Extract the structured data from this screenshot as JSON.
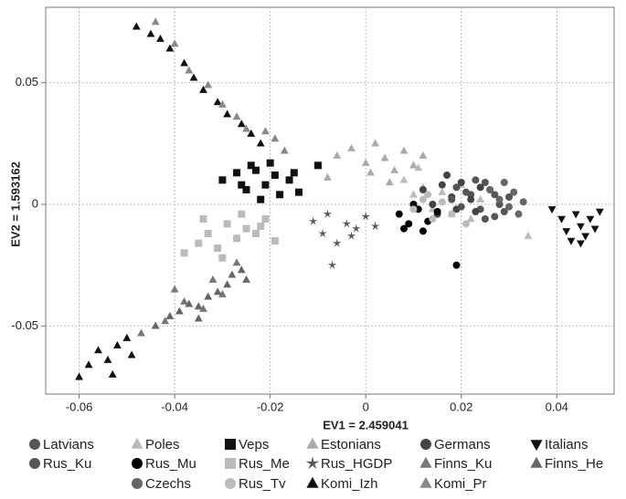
{
  "chart_data": {
    "type": "scatter",
    "x_label": "EV1 = 2.459041",
    "y_label": "EV2 = 1.593162",
    "xlim": [
      -0.067,
      0.052
    ],
    "ylim": [
      -0.078,
      0.081
    ],
    "xticks": [
      -0.06,
      -0.04,
      -0.02,
      0,
      0.02,
      0.04
    ],
    "yticks": [
      -0.05,
      0,
      0.05
    ],
    "grid": true,
    "legend": "bottom",
    "series": [
      {
        "name": "Latvians",
        "color": "#555555",
        "marker": "circle",
        "x": [
          0.022,
          0.024,
          0.026,
          0.028,
          0.03,
          0.025,
          0.027,
          0.029
        ],
        "y": [
          0.004,
          -0.002,
          0.006,
          0.0,
          0.003,
          0.009,
          -0.005,
          -0.003
        ]
      },
      {
        "name": "Poles",
        "color": "#bbbbbb",
        "marker": "triangle",
        "x": [
          0.008,
          0.01,
          0.012,
          0.014,
          0.016,
          0.018,
          0.02,
          0.022,
          0.024,
          0.011,
          0.034
        ],
        "y": [
          0.01,
          0.004,
          0.007,
          -0.002,
          0.005,
          -0.004,
          0.008,
          -0.006,
          0.002,
          0.015,
          -0.013
        ]
      },
      {
        "name": "Veps",
        "color": "#111111",
        "marker": "square",
        "x": [
          -0.03,
          -0.027,
          -0.025,
          -0.023,
          -0.021,
          -0.019,
          -0.018,
          -0.016,
          -0.022,
          -0.024,
          -0.02,
          -0.014,
          -0.015,
          -0.01,
          -0.026
        ],
        "y": [
          0.01,
          0.013,
          0.006,
          0.014,
          0.008,
          0.012,
          0.004,
          0.01,
          0.002,
          0.016,
          0.017,
          0.005,
          0.013,
          0.016,
          0.008
        ]
      },
      {
        "name": "Estonians",
        "color": "#aaaaaa",
        "marker": "triangle",
        "x": [
          -0.006,
          -0.003,
          0.0,
          0.002,
          0.004,
          0.006,
          0.008,
          0.01,
          -0.008,
          0.001,
          0.005,
          0.012
        ],
        "y": [
          0.02,
          0.023,
          0.017,
          0.025,
          0.019,
          0.014,
          0.022,
          0.016,
          0.011,
          0.013,
          0.009,
          0.02
        ]
      },
      {
        "name": "Germans",
        "color": "#444444",
        "marker": "circle",
        "x": [
          0.012,
          0.014,
          0.016,
          0.018,
          0.02,
          0.022,
          0.024,
          0.015,
          0.019,
          0.023,
          0.017
        ],
        "y": [
          0.006,
          0.0,
          0.008,
          0.003,
          0.009,
          0.002,
          0.007,
          -0.004,
          -0.002,
          -0.003,
          0.012
        ]
      },
      {
        "name": "Italians",
        "color": "#111111",
        "marker": "triangle-down",
        "x": [
          0.039,
          0.041,
          0.042,
          0.044,
          0.045,
          0.046,
          0.047,
          0.048,
          0.043,
          0.045,
          0.049
        ],
        "y": [
          -0.002,
          -0.006,
          -0.011,
          -0.004,
          -0.009,
          -0.013,
          -0.006,
          -0.01,
          -0.015,
          -0.016,
          -0.003
        ]
      },
      {
        "name": "Rus_Ku",
        "color": "#555555",
        "marker": "circle",
        "x": [
          0.018,
          0.02,
          0.021,
          0.023,
          0.025,
          0.027,
          0.019
        ],
        "y": [
          0.002,
          -0.001,
          0.005,
          0.01,
          -0.006,
          0.004,
          0.007
        ]
      },
      {
        "name": "Rus_Mu",
        "color": "#000000",
        "marker": "circle",
        "x": [
          0.007,
          0.009,
          0.011,
          0.013,
          0.015,
          0.008,
          0.012,
          0.01,
          0.019
        ],
        "y": [
          -0.004,
          -0.008,
          -0.002,
          -0.007,
          -0.003,
          -0.01,
          -0.011,
          0.0,
          -0.025
        ]
      },
      {
        "name": "Rus_Me",
        "color": "#bbbbbb",
        "marker": "square",
        "x": [
          -0.038,
          -0.035,
          -0.033,
          -0.031,
          -0.029,
          -0.027,
          -0.025,
          -0.023,
          -0.021,
          -0.019,
          -0.034,
          -0.03,
          -0.026,
          -0.022
        ],
        "y": [
          -0.02,
          -0.016,
          -0.012,
          -0.018,
          -0.008,
          -0.014,
          -0.01,
          -0.012,
          -0.006,
          -0.015,
          -0.006,
          -0.022,
          -0.004,
          -0.009
        ]
      },
      {
        "name": "Rus_HGDP",
        "color": "#555555",
        "marker": "star",
        "x": [
          -0.011,
          -0.009,
          -0.008,
          -0.006,
          -0.004,
          -0.002,
          0.0,
          0.002,
          -0.007,
          -0.003
        ],
        "y": [
          -0.007,
          -0.012,
          -0.004,
          -0.016,
          -0.008,
          -0.01,
          -0.005,
          -0.009,
          -0.025,
          -0.013
        ]
      },
      {
        "name": "Finns_Ku",
        "color": "#777777",
        "marker": "triangle",
        "x": [
          -0.047,
          -0.042,
          -0.038,
          -0.034,
          -0.03,
          -0.032,
          -0.027,
          -0.04
        ],
        "y": [
          -0.053,
          -0.048,
          -0.04,
          -0.043,
          -0.037,
          -0.031,
          -0.024,
          -0.035
        ]
      },
      {
        "name": "Finns_He",
        "color": "#666666",
        "marker": "triangle",
        "x": [
          -0.044,
          -0.041,
          -0.039,
          -0.037,
          -0.035,
          -0.033,
          -0.031,
          -0.029,
          -0.028,
          -0.026,
          -0.025,
          -0.035
        ],
        "y": [
          -0.05,
          -0.046,
          -0.044,
          -0.041,
          -0.042,
          -0.038,
          -0.036,
          -0.033,
          -0.029,
          -0.027,
          -0.031,
          -0.047
        ]
      },
      {
        "name": "Czechs",
        "color": "#666666",
        "marker": "circle",
        "x": [
          0.026,
          0.028,
          0.03,
          0.031,
          0.032,
          0.029,
          0.033
        ],
        "y": [
          0.006,
          0.002,
          -0.001,
          0.005,
          -0.004,
          0.009,
          0.001
        ]
      },
      {
        "name": "Rus_Tv",
        "color": "#bbbbbb",
        "marker": "circle",
        "x": [
          0.01,
          0.012,
          0.014,
          0.016,
          0.018,
          0.013,
          0.021
        ],
        "y": [
          -0.002,
          0.002,
          -0.006,
          0.001,
          -0.004,
          0.004,
          -0.008
        ]
      },
      {
        "name": "Komi_Izh",
        "color": "#111111",
        "marker": "triangle",
        "x": [
          -0.048,
          -0.045,
          -0.043,
          -0.041,
          -0.038,
          -0.036,
          -0.034,
          -0.031,
          -0.029,
          -0.026,
          -0.024,
          -0.022,
          -0.058,
          -0.056,
          -0.054,
          -0.052,
          -0.05,
          -0.053,
          -0.06,
          -0.049
        ],
        "y": [
          0.073,
          0.07,
          0.068,
          0.064,
          0.058,
          0.052,
          0.047,
          0.042,
          0.037,
          0.033,
          0.029,
          0.025,
          -0.066,
          -0.06,
          -0.064,
          -0.058,
          -0.055,
          -0.07,
          -0.071,
          -0.062
        ]
      },
      {
        "name": "Komi_Pr",
        "color": "#888888",
        "marker": "triangle",
        "x": [
          -0.044,
          -0.04,
          -0.037,
          -0.033,
          -0.03,
          -0.027,
          -0.025,
          -0.021,
          -0.019,
          -0.017
        ],
        "y": [
          0.075,
          0.066,
          0.055,
          0.049,
          0.041,
          0.036,
          0.031,
          0.03,
          0.027,
          0.022
        ]
      }
    ]
  }
}
